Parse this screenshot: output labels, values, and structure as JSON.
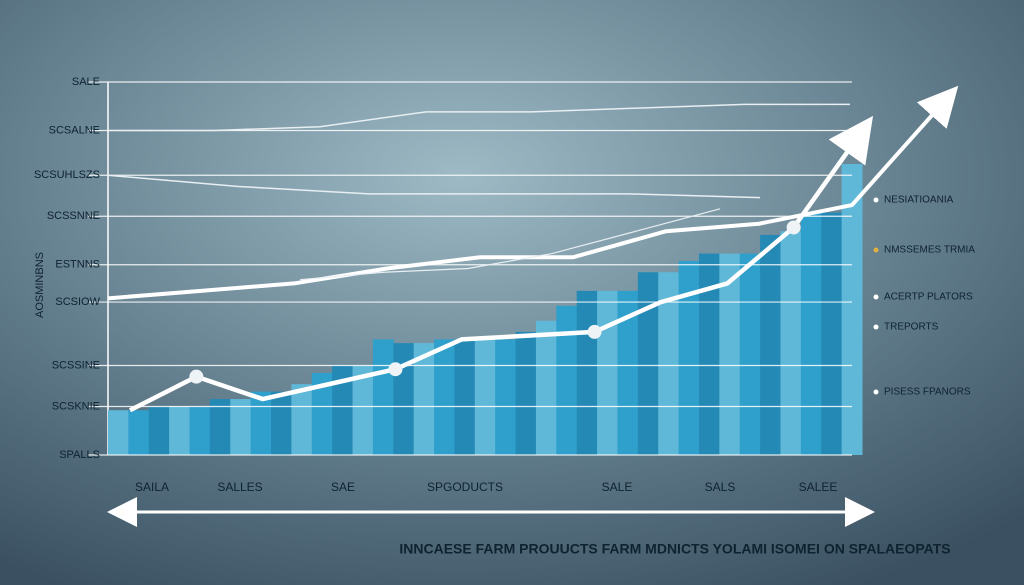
{
  "chart_data": {
    "type": "bar",
    "y_axis_label": "AOSMINBNS",
    "title": "INNCAESE FARM PROUUCTS FARM MDNICTS  YOLAMI ISOMEI ON SPALAEOPATS",
    "ylim": [
      0,
      100
    ],
    "yticks": [
      {
        "value": 0,
        "label": "SPALLS"
      },
      {
        "value": 13,
        "label": "SCSKNIE"
      },
      {
        "value": 24,
        "label": "SCSSINE"
      },
      {
        "value": 41,
        "label": "SCSIOW"
      },
      {
        "value": 51,
        "label": "ESTNNS"
      },
      {
        "value": 64,
        "label": "SCSSNNE"
      },
      {
        "value": 75,
        "label": "SCSUHLSZS"
      },
      {
        "value": 87,
        "label": "SCSALNE"
      },
      {
        "value": 100,
        "label": "SALE"
      }
    ],
    "grid": true,
    "x_labels": [
      "SAILA",
      "SALLES",
      "SAE",
      "SPGODUCTS",
      "SALE",
      "SALS",
      "SALEE"
    ],
    "color": "#2f9fcb",
    "values": [
      12,
      12,
      13,
      13,
      13,
      15,
      15,
      17,
      17,
      19,
      22,
      24,
      24,
      31,
      30,
      30,
      31,
      31,
      31,
      31,
      33,
      36,
      40,
      44,
      44,
      44,
      49,
      49,
      52,
      54,
      54,
      54,
      59,
      60,
      65,
      65,
      78
    ],
    "series": [
      {
        "name": "NESIATIOANIA",
        "color": "#ffffff",
        "values": [
          12,
          21,
          15,
          19,
          23,
          31,
          32,
          33,
          41,
          46,
          61,
          86
        ]
      },
      {
        "name": "NMSSEMES TRMIA",
        "color": "#ffffff",
        "values": [
          42,
          44,
          46,
          50,
          53,
          53,
          60,
          62,
          67,
          95
        ]
      },
      {
        "name": "ACERTP PLATORS",
        "color": "#e8eef2",
        "values": [
          87,
          87,
          88,
          92,
          92,
          93,
          94,
          94
        ]
      },
      {
        "name": "TREPORTS",
        "color": "#e8eef2",
        "values": [
          75,
          72,
          70,
          70,
          70,
          69
        ]
      },
      {
        "name": "PISESS FPANORS",
        "color": "#e8eef2",
        "values": [
          47,
          49,
          50,
          54,
          60,
          66
        ]
      }
    ]
  }
}
